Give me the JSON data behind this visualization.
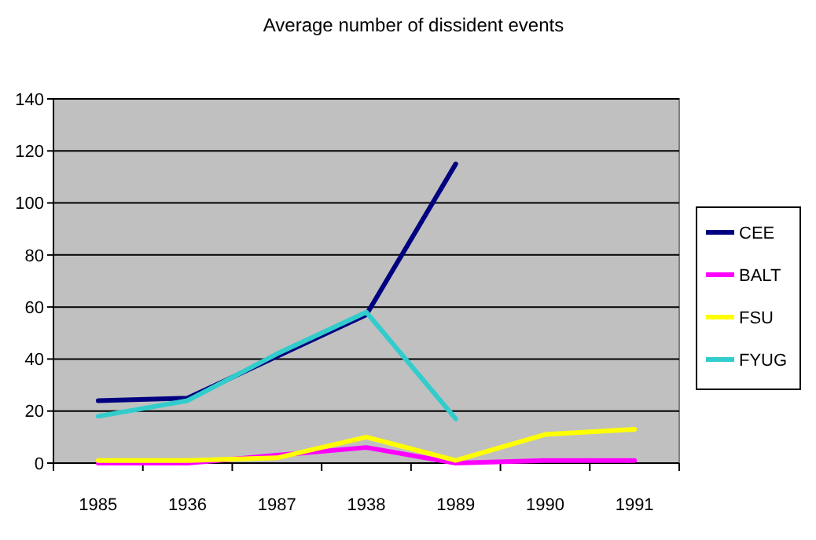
{
  "chart_data": {
    "type": "line",
    "title": "Average number of dissident events",
    "categories": [
      "1985",
      "1936",
      "1987",
      "1938",
      "1989",
      "1990",
      "1991"
    ],
    "series": [
      {
        "name": "CEE",
        "color": "#000080",
        "values": [
          24,
          25,
          41,
          57,
          115,
          null,
          null
        ]
      },
      {
        "name": "BALT",
        "color": "#ff00ff",
        "values": [
          0,
          0,
          3,
          6,
          0,
          1,
          1
        ]
      },
      {
        "name": "FSU",
        "color": "#ffff00",
        "values": [
          1,
          1,
          2,
          10,
          1,
          11,
          13
        ]
      },
      {
        "name": "FYUG",
        "color": "#33cccc",
        "values": [
          18,
          24,
          42,
          58,
          17,
          null,
          null
        ]
      }
    ],
    "ylim": [
      0,
      140
    ],
    "yticks": [
      0,
      20,
      40,
      60,
      80,
      100,
      120,
      140
    ],
    "grid": "y",
    "legend": "right",
    "marker": "none",
    "line_style": "solid"
  }
}
